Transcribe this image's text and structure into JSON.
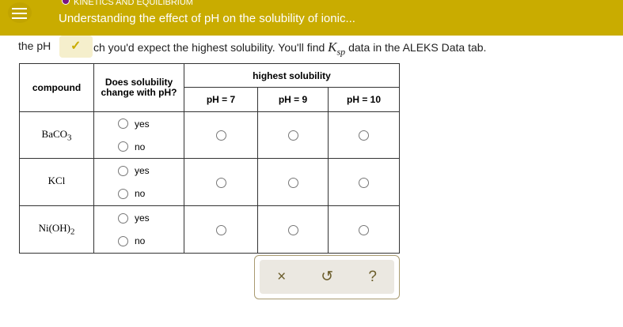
{
  "header": {
    "category": "KINETICS AND EQUILIBRIUM",
    "title": "Understanding the effect of pH on the solubility of ionic..."
  },
  "instructions": {
    "before": "the pH",
    "after": "ch you'd expect the highest solubility. You'll find ",
    "k": "K",
    "sub": "sp",
    "end": " data in the ALEKS Data tab."
  },
  "table": {
    "h_compound": "compound",
    "h_change": "Does solubility change with pH?",
    "h_highest": "highest solubility",
    "ph": [
      "pH = 7",
      "pH = 9",
      "pH = 10"
    ],
    "rows": [
      {
        "name": "BaCO",
        "sub": "3"
      },
      {
        "name": "KCl",
        "sub": ""
      },
      {
        "name": "Ni(OH)",
        "sub": "2"
      }
    ],
    "yes": "yes",
    "no": "no"
  },
  "toolbar": {
    "clear": "×",
    "undo": "↺",
    "help": "?"
  },
  "colors": {
    "header": "#c9ac00",
    "category_dot": "#7a1580"
  }
}
